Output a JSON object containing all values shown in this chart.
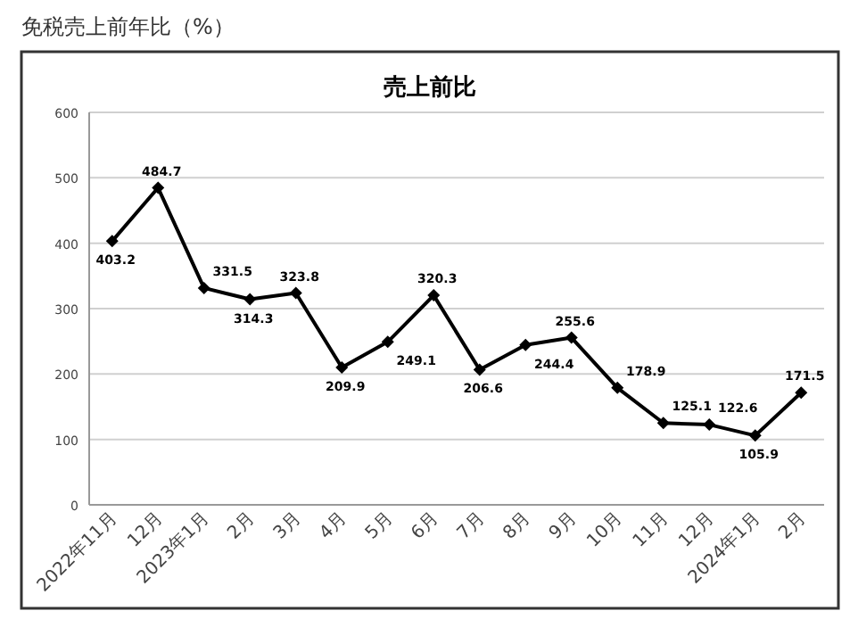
{
  "chart_data": {
    "type": "line",
    "title": "免税売上前年比（%）",
    "subtitle": "売上前比",
    "categories": [
      "2022年11月",
      "12月",
      "2023年1月",
      "2月",
      "3月",
      "4月",
      "5月",
      "6月",
      "7月",
      "8月",
      "9月",
      "10月",
      "11月",
      "12月",
      "2024年1月",
      "2月"
    ],
    "series": [
      {
        "color": "#000000",
        "values": [
          403.2,
          484.7,
          331.5,
          314.3,
          323.8,
          209.9,
          249.1,
          320.3,
          206.6,
          244.4,
          255.6,
          178.9,
          125.1,
          122.6,
          105.9,
          171.5
        ]
      }
    ],
    "ylim": [
      0,
      600
    ],
    "yticks": [
      0,
      100,
      200,
      300,
      400,
      500,
      600
    ],
    "grid": "y",
    "marker": "diamond",
    "data_labels": true,
    "line_style": "solid"
  }
}
